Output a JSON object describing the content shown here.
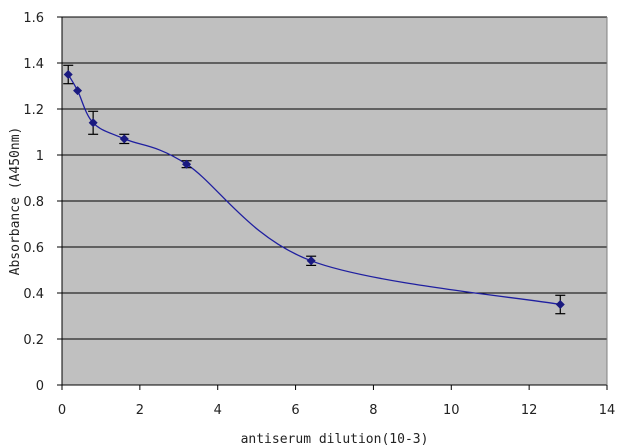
{
  "chart_data": {
    "type": "line",
    "title": "",
    "xlabel": "antiserum dilution(10-3)",
    "ylabel": "Absorbance (A450nm)",
    "xlim": [
      0,
      14
    ],
    "ylim": [
      0,
      1.6
    ],
    "x_ticks": [
      "0",
      "2",
      "4",
      "6",
      "8",
      "10",
      "12",
      "14"
    ],
    "y_ticks": [
      "0",
      "0.2",
      "0.4",
      "0.6",
      "0.8",
      "1",
      "1.2",
      "1.4",
      "1.6"
    ],
    "grid": "horizontal",
    "legend": "none",
    "series": [
      {
        "x": [
          0.16,
          0.4,
          0.8,
          1.6,
          3.2,
          6.4,
          12.8
        ],
        "y": [
          1.35,
          1.28,
          1.14,
          1.07,
          0.96,
          0.54,
          0.35
        ],
        "error": [
          0.04,
          0.0,
          0.05,
          0.02,
          0.015,
          0.02,
          0.04
        ]
      }
    ],
    "colors": {
      "plot_background": "#c0c0c0",
      "gridline": "#000000",
      "line": "#1f1fa0",
      "marker": "#1a1a80",
      "error_bar": "#000000"
    }
  }
}
